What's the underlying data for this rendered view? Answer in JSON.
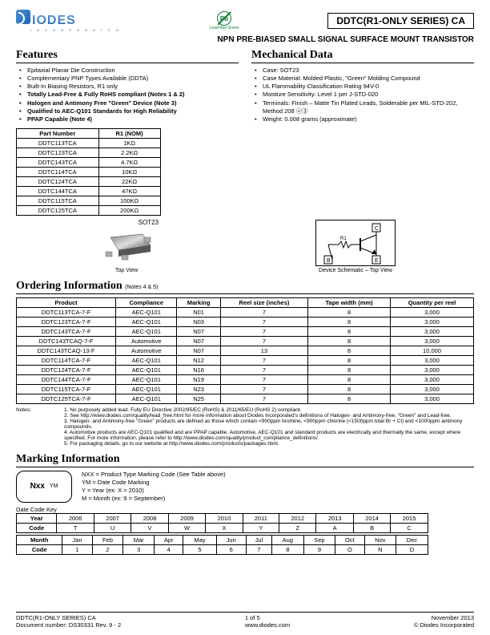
{
  "header": {
    "logo_text": "IODES",
    "logo_sub": "I N C O R P O R A T E D",
    "pb_label": "Pb",
    "pb_sub": "Lead-free Green",
    "title_box": "DDTC(R1-ONLY SERIES) CA",
    "subtitle": "NPN PRE-BIASED SMALL SIGNAL SURFACE MOUNT TRANSISTOR"
  },
  "features": {
    "heading": "Features",
    "items": [
      {
        "t": "Epitaxial Planar Die Construction",
        "b": false
      },
      {
        "t": "Complementary PNP Types Available (DDTA)",
        "b": false
      },
      {
        "t": "Built-In Biasing Resistors, R1 only",
        "b": false
      },
      {
        "t": "Totally Lead-Free & Fully RoHS compliant (Notes 1 & 2)",
        "b": true
      },
      {
        "t": "Halogen and Antimony Free \"Green\" Device (Note 3)",
        "b": true
      },
      {
        "t": "Qualified to AEC-Q101 Standards for High Reliability",
        "b": true
      },
      {
        "t": "PPAP Capable (Note 4)",
        "b": true
      }
    ]
  },
  "mech": {
    "heading": "Mechanical Data",
    "items": [
      "Case: SOT23",
      "Case Material: Molded Plastic, \"Green\" Molding Compound",
      "UL Flammability Classification Rating 94V-0",
      "Moisture Sensitivity:  Level 1 per J-STD-020",
      "Terminals: Finish – Matte Tin Plated Leads, Solderable per MIL-STD-202, Method 208  ⓔ③",
      "Weight: 0.008 grams (approximate)"
    ]
  },
  "part_tbl": {
    "headers": [
      "Part Number",
      "R1 (NOM)"
    ],
    "rows": [
      [
        "DDTC113TCA",
        "1KΩ"
      ],
      [
        "DDTC123TCA",
        "2.2KΩ"
      ],
      [
        "DDTC143TCA",
        "4.7KΩ"
      ],
      [
        "DDTC114TCA",
        "10KΩ"
      ],
      [
        "DDTC124TCA",
        "22KΩ"
      ],
      [
        "DDTC144TCA",
        "47KΩ"
      ],
      [
        "DDTC115TCA",
        "100KΩ"
      ],
      [
        "DDTC125TCA",
        "200KΩ"
      ]
    ]
  },
  "images": {
    "sot_label": "SOT23",
    "topview": "Top View",
    "schem": "Device Schematic – Top View",
    "pins": {
      "c": "C",
      "b": "B",
      "e": "E",
      "r1": "R1"
    }
  },
  "ordering": {
    "heading": "Ordering Information",
    "note_suffix": "(Notes 4 & 5)",
    "headers": [
      "Product",
      "Compliance",
      "Marking",
      "Reel size (inches)",
      "Tape width (mm)",
      "Quantity per reel"
    ],
    "rows": [
      [
        "DDTC113TCA-7-F",
        "AEC-Q101",
        "N01",
        "7",
        "8",
        "3,000"
      ],
      [
        "DDTC123TCA-7-F",
        "AEC-Q101",
        "N03",
        "7",
        "8",
        "3,000"
      ],
      [
        "DDTC143TCA-7-F",
        "AEC-Q101",
        "N07",
        "7",
        "8",
        "3,000"
      ],
      [
        "DDTC143TCAQ-7-F",
        "Automotive",
        "N07",
        "7",
        "8",
        "3,000"
      ],
      [
        "DDTC143TCAQ-13-F",
        "Automotive",
        "N07",
        "13",
        "8",
        "10,000"
      ],
      [
        "DDTC114TCA-7-F",
        "AEC-Q101",
        "N12",
        "7",
        "8",
        "3,000"
      ],
      [
        "DDTC124TCA-7-F",
        "AEC-Q101",
        "N16",
        "7",
        "8",
        "3,000"
      ],
      [
        "DDTC144TCA-7-F",
        "AEC-Q101",
        "N19",
        "7",
        "8",
        "3,000"
      ],
      [
        "DDTC115TCA-7-F",
        "AEC-Q101",
        "N23",
        "7",
        "8",
        "3,000"
      ],
      [
        "DDTC125TCA-7-F",
        "AEC-Q101",
        "N25",
        "7",
        "8",
        "3,000"
      ]
    ]
  },
  "notes": {
    "label": "Notes:",
    "items": [
      "1. No purposely added lead. Fully EU Directive 2002/95/EC (RoHS) & 2011/65/EU (RoHS 2) compliant.",
      "2. See http://www.diodes.com/quality/lead_free.html for more information about Diodes Incorporated's definitions of Halogen- and Antimony-free, \"Green\" and Lead-free.",
      "3. Halogen- and Antimony-free \"Green\" products are defined as those which contain <900ppm bromine, <900ppm chlorine (<1500ppm total Br + Cl) and <1000ppm antimony compounds.",
      "4. Automotive products are AEC-Q101 qualified and are PPAP capable.  Automotive, AEC-Q101 and standard products are electrically and thermally the same, except where specified. For more information, please refer to http://www.diodes.com/quality/product_compliance_definitions/.",
      "5. For packaging details, go to our website at http://www.diodes.com/products/packages.html."
    ]
  },
  "marking": {
    "heading": "Marking Information",
    "chip_nxx": "Nxx",
    "chip_ym": "YM",
    "desc": [
      "NXX = Product Type Marking Code (See Table above)",
      "YM = Date Code Marking",
      "Y = Year (ex: X = 2010)",
      "M = Month (ex: 9 = September)"
    ],
    "dc_label": "Date Code Key"
  },
  "date_code": {
    "year_h": "Year",
    "years": [
      "2006",
      "2007",
      "2008",
      "2009",
      "2010",
      "2011",
      "2012",
      "2013",
      "2014",
      "2015"
    ],
    "code_h": "Code",
    "ycodes": [
      "T",
      "U",
      "V",
      "W",
      "X",
      "Y",
      "Z",
      "A",
      "B",
      "C"
    ],
    "month_h": "Month",
    "months": [
      "Jan",
      "Feb",
      "Mar",
      "Apr",
      "May",
      "Jun",
      "Jul",
      "Aug",
      "Sep",
      "Oct",
      "Nov",
      "Dec"
    ],
    "mcodes": [
      "1",
      "2",
      "3",
      "4",
      "5",
      "6",
      "7",
      "8",
      "9",
      "O",
      "N",
      "D"
    ]
  },
  "footer": {
    "left1": "DDTC(R1-ONLY SERIES) CA",
    "left2": "Document number: DS30331 Rev. 9 - 2",
    "center": "1 of 5",
    "right1": "November 2013",
    "right2": "© Diodes Incorporated"
  }
}
